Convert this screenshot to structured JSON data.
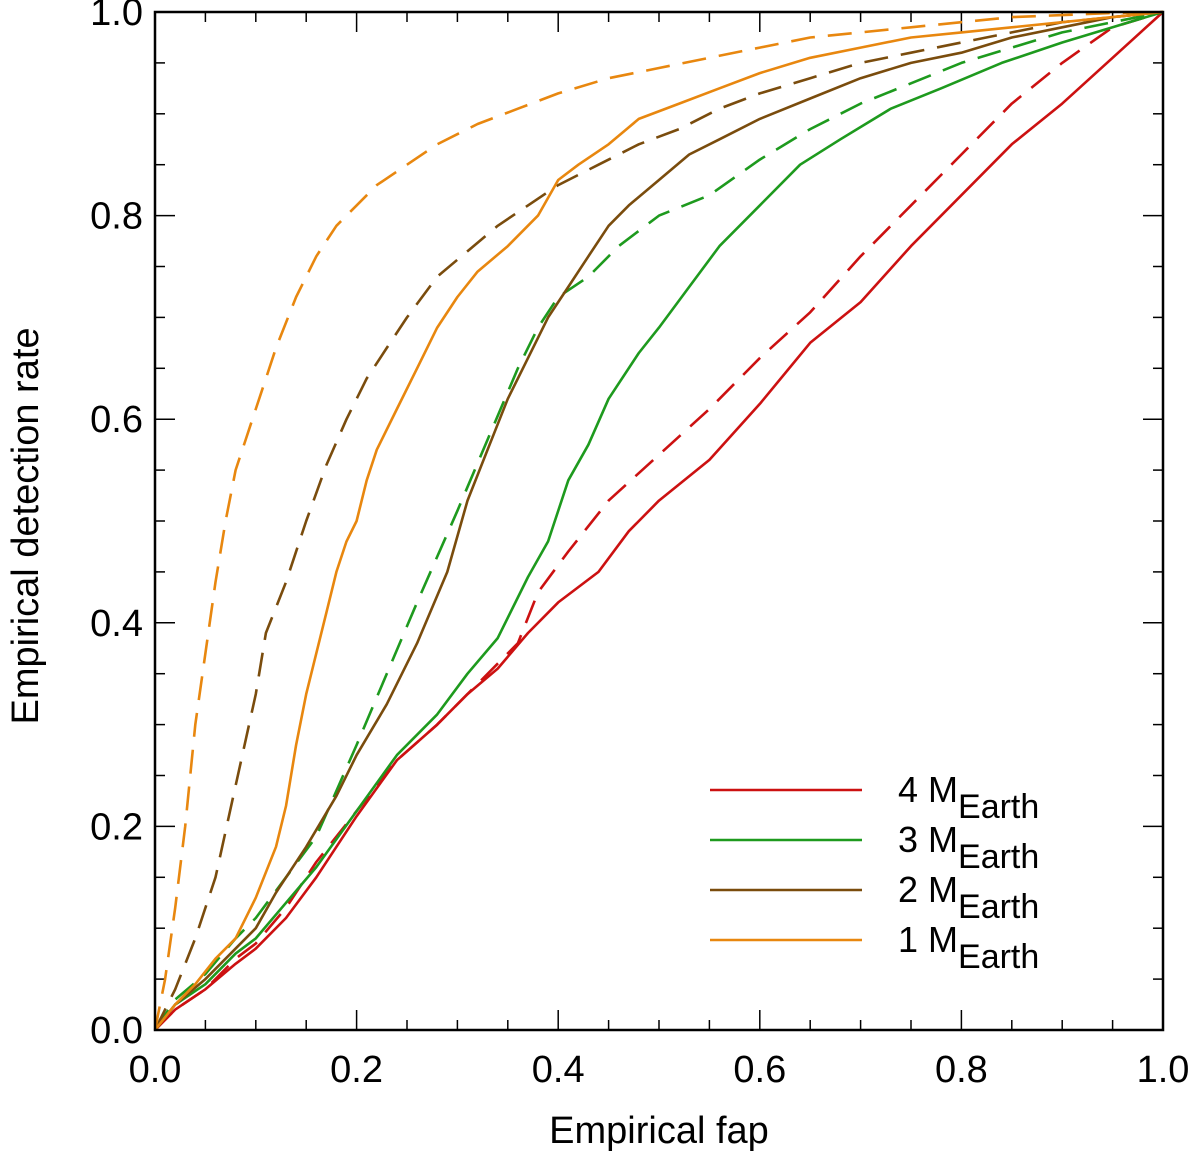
{
  "chart_data": {
    "type": "line",
    "title": "",
    "xlabel": "Empirical fap",
    "ylabel": "Empirical detection rate",
    "xlim": [
      0.0,
      1.0
    ],
    "ylim": [
      0.0,
      1.0
    ],
    "x_ticks": [
      "0.0",
      "0.2",
      "0.4",
      "0.6",
      "0.8",
      "1.0"
    ],
    "y_ticks": [
      "0.0",
      "0.2",
      "0.4",
      "0.6",
      "0.8",
      "1.0"
    ],
    "grid": false,
    "legend_position": "bottom-right",
    "series": [
      {
        "name": "4 M",
        "name_sub": "Earth",
        "color": "#cc1111",
        "style": "solid",
        "x": [
          0,
          0.02,
          0.05,
          0.08,
          0.1,
          0.13,
          0.16,
          0.2,
          0.24,
          0.28,
          0.31,
          0.34,
          0.37,
          0.4,
          0.44,
          0.47,
          0.5,
          0.55,
          0.6,
          0.65,
          0.7,
          0.75,
          0.8,
          0.85,
          0.9,
          0.95,
          1.0
        ],
        "y": [
          0,
          0.02,
          0.04,
          0.065,
          0.08,
          0.11,
          0.15,
          0.21,
          0.265,
          0.3,
          0.33,
          0.355,
          0.39,
          0.42,
          0.45,
          0.49,
          0.52,
          0.56,
          0.615,
          0.675,
          0.715,
          0.77,
          0.82,
          0.87,
          0.91,
          0.955,
          1.0
        ]
      },
      {
        "name": "",
        "color": "#cc1111",
        "style": "dashed",
        "x": [
          0,
          0.02,
          0.05,
          0.08,
          0.1,
          0.13,
          0.16,
          0.2,
          0.24,
          0.28,
          0.32,
          0.36,
          0.38,
          0.41,
          0.45,
          0.5,
          0.55,
          0.6,
          0.65,
          0.7,
          0.75,
          0.8,
          0.85,
          0.9,
          0.95,
          1.0
        ],
        "y": [
          0,
          0.02,
          0.04,
          0.07,
          0.085,
          0.12,
          0.165,
          0.215,
          0.265,
          0.3,
          0.34,
          0.38,
          0.43,
          0.47,
          0.52,
          0.565,
          0.61,
          0.66,
          0.705,
          0.76,
          0.81,
          0.86,
          0.91,
          0.95,
          0.985,
          1.0
        ]
      },
      {
        "name": "3 M",
        "name_sub": "Earth",
        "color": "#1e9a1e",
        "style": "solid",
        "x": [
          0,
          0.02,
          0.05,
          0.08,
          0.1,
          0.13,
          0.16,
          0.2,
          0.24,
          0.28,
          0.31,
          0.34,
          0.37,
          0.39,
          0.41,
          0.43,
          0.45,
          0.48,
          0.5,
          0.53,
          0.56,
          0.6,
          0.64,
          0.68,
          0.73,
          0.78,
          0.84,
          0.9,
          0.95,
          1.0
        ],
        "y": [
          0,
          0.025,
          0.045,
          0.075,
          0.09,
          0.125,
          0.16,
          0.215,
          0.27,
          0.31,
          0.35,
          0.385,
          0.445,
          0.48,
          0.54,
          0.575,
          0.62,
          0.665,
          0.69,
          0.73,
          0.77,
          0.81,
          0.85,
          0.875,
          0.905,
          0.925,
          0.95,
          0.97,
          0.985,
          1.0
        ]
      },
      {
        "name": "",
        "color": "#1e9a1e",
        "style": "dashed",
        "x": [
          0,
          0.02,
          0.05,
          0.08,
          0.1,
          0.13,
          0.16,
          0.2,
          0.23,
          0.26,
          0.3,
          0.33,
          0.36,
          0.38,
          0.4,
          0.43,
          0.46,
          0.5,
          0.55,
          0.6,
          0.65,
          0.7,
          0.75,
          0.8,
          0.85,
          0.9,
          0.95,
          1.0
        ],
        "y": [
          0,
          0.03,
          0.055,
          0.09,
          0.11,
          0.15,
          0.19,
          0.28,
          0.35,
          0.42,
          0.51,
          0.58,
          0.65,
          0.69,
          0.72,
          0.74,
          0.77,
          0.8,
          0.82,
          0.855,
          0.885,
          0.91,
          0.93,
          0.95,
          0.965,
          0.98,
          0.99,
          1.0
        ]
      },
      {
        "name": "2 M",
        "name_sub": "Earth",
        "color": "#7a4c0d",
        "style": "solid",
        "x": [
          0,
          0.02,
          0.05,
          0.08,
          0.1,
          0.12,
          0.15,
          0.18,
          0.2,
          0.23,
          0.26,
          0.29,
          0.31,
          0.33,
          0.35,
          0.37,
          0.39,
          0.41,
          0.43,
          0.45,
          0.47,
          0.5,
          0.53,
          0.56,
          0.6,
          0.65,
          0.7,
          0.75,
          0.8,
          0.85,
          0.9,
          0.95,
          1.0
        ],
        "y": [
          0,
          0.025,
          0.05,
          0.08,
          0.1,
          0.135,
          0.18,
          0.23,
          0.27,
          0.32,
          0.38,
          0.45,
          0.52,
          0.57,
          0.62,
          0.66,
          0.7,
          0.73,
          0.76,
          0.79,
          0.81,
          0.835,
          0.86,
          0.875,
          0.895,
          0.915,
          0.935,
          0.95,
          0.96,
          0.975,
          0.985,
          0.995,
          1.0
        ]
      },
      {
        "name": "",
        "color": "#7a4c0d",
        "style": "dashed",
        "x": [
          0,
          0.01,
          0.02,
          0.04,
          0.06,
          0.08,
          0.1,
          0.11,
          0.13,
          0.15,
          0.17,
          0.19,
          0.21,
          0.23,
          0.25,
          0.28,
          0.31,
          0.34,
          0.37,
          0.4,
          0.44,
          0.48,
          0.52,
          0.56,
          0.6,
          0.65,
          0.7,
          0.75,
          0.8,
          0.85,
          0.9,
          0.95,
          1.0
        ],
        "y": [
          0,
          0.02,
          0.04,
          0.09,
          0.15,
          0.24,
          0.33,
          0.39,
          0.44,
          0.5,
          0.555,
          0.6,
          0.64,
          0.67,
          0.7,
          0.74,
          0.765,
          0.79,
          0.81,
          0.83,
          0.85,
          0.87,
          0.885,
          0.905,
          0.92,
          0.935,
          0.95,
          0.96,
          0.97,
          0.98,
          0.99,
          0.995,
          1.0
        ]
      },
      {
        "name": "1 M",
        "name_sub": "Earth",
        "color": "#e8870f",
        "style": "solid",
        "x": [
          0,
          0.02,
          0.04,
          0.06,
          0.08,
          0.1,
          0.12,
          0.13,
          0.14,
          0.15,
          0.16,
          0.17,
          0.18,
          0.19,
          0.2,
          0.21,
          0.22,
          0.24,
          0.26,
          0.28,
          0.3,
          0.32,
          0.35,
          0.38,
          0.4,
          0.42,
          0.45,
          0.48,
          0.52,
          0.56,
          0.6,
          0.65,
          0.7,
          0.75,
          0.8,
          0.85,
          0.9,
          0.95,
          1.0
        ],
        "y": [
          0,
          0.025,
          0.045,
          0.07,
          0.09,
          0.13,
          0.18,
          0.22,
          0.28,
          0.33,
          0.37,
          0.41,
          0.45,
          0.48,
          0.5,
          0.54,
          0.57,
          0.61,
          0.65,
          0.69,
          0.72,
          0.745,
          0.77,
          0.8,
          0.835,
          0.85,
          0.87,
          0.895,
          0.91,
          0.925,
          0.94,
          0.955,
          0.965,
          0.975,
          0.98,
          0.985,
          0.99,
          0.995,
          1.0
        ]
      },
      {
        "name": "",
        "color": "#e8870f",
        "style": "dashed",
        "x": [
          0,
          0.01,
          0.02,
          0.03,
          0.04,
          0.05,
          0.06,
          0.07,
          0.08,
          0.09,
          0.1,
          0.11,
          0.12,
          0.14,
          0.16,
          0.18,
          0.2,
          0.22,
          0.25,
          0.28,
          0.32,
          0.36,
          0.4,
          0.45,
          0.5,
          0.55,
          0.6,
          0.65,
          0.7,
          0.75,
          0.8,
          0.85,
          0.9,
          0.95,
          1.0
        ],
        "y": [
          0,
          0.05,
          0.12,
          0.2,
          0.3,
          0.37,
          0.44,
          0.5,
          0.55,
          0.58,
          0.61,
          0.64,
          0.67,
          0.72,
          0.76,
          0.79,
          0.81,
          0.83,
          0.85,
          0.87,
          0.89,
          0.905,
          0.92,
          0.935,
          0.945,
          0.955,
          0.965,
          0.975,
          0.98,
          0.985,
          0.99,
          0.995,
          0.997,
          0.999,
          1.0
        ]
      }
    ]
  }
}
